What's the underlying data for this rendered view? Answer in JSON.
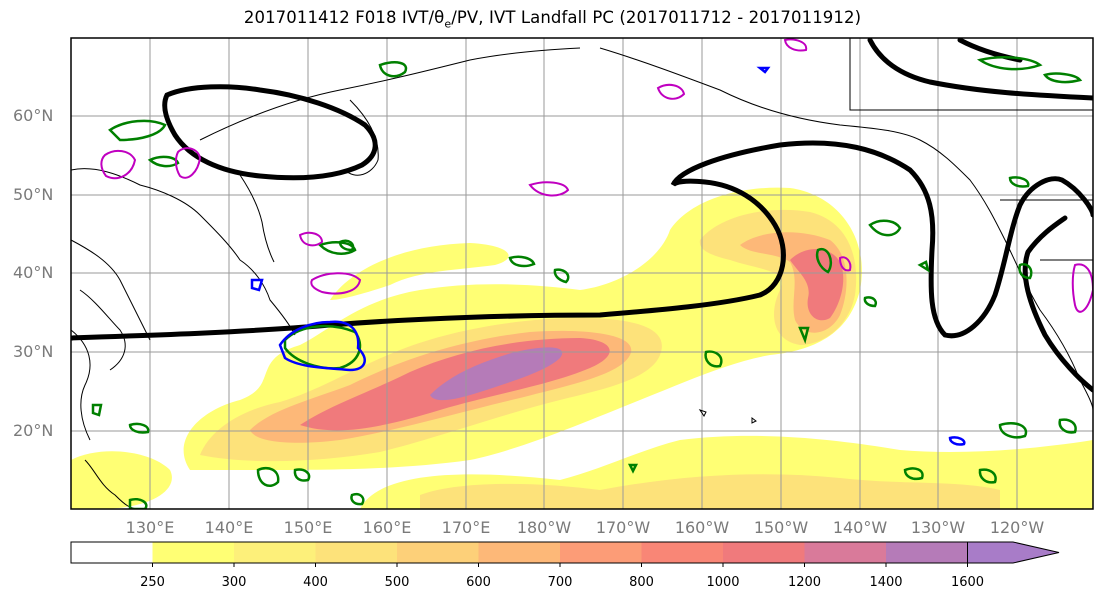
{
  "title": "2017011412 F018 IVT/θ",
  "title_sub": "e",
  "title_rest": "/PV, IVT Landfall PC (2017011712 - 2017011912)",
  "map": {
    "lat_labels": [
      "60°N",
      "50°N",
      "40°N",
      "30°N",
      "20°N"
    ],
    "lon_labels": [
      "130°E",
      "140°E",
      "150°E",
      "160°E",
      "170°E",
      "180°W",
      "170°W",
      "160°W",
      "150°W",
      "140°W",
      "130°W",
      "120°W"
    ],
    "colors": {
      "theta_contour": "#000000",
      "pv_contour_green": "#008000",
      "pv_contour_blue": "#0000ff",
      "pv_contour_magenta": "#c000c0",
      "gridline": "#9a9a9a",
      "coastline": "#000000"
    }
  },
  "colorbar": {
    "levels": [
      "250",
      "300",
      "400",
      "500",
      "600",
      "700",
      "800",
      "1000",
      "1200",
      "1400",
      "1600"
    ],
    "colors": [
      "#ffffff",
      "#ffff74",
      "#fdf07a",
      "#fde27a",
      "#fdd079",
      "#fdb878",
      "#fc9c77",
      "#f98676",
      "#f07a7c",
      "#d97a9a",
      "#b57bb8",
      "#a87cc8"
    ],
    "extend": "max"
  }
}
